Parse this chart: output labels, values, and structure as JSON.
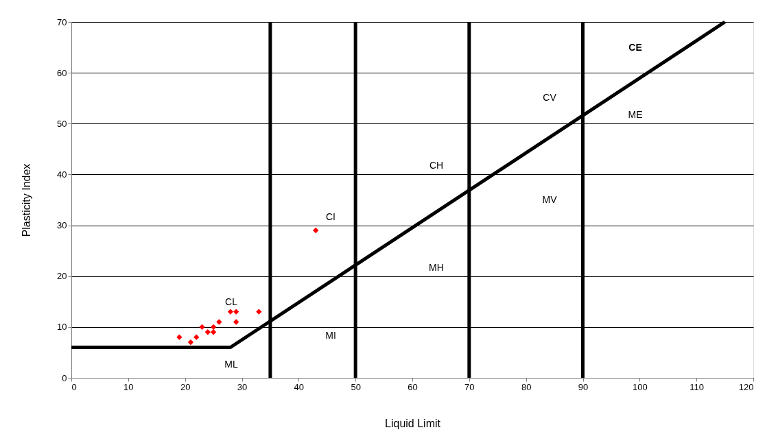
{
  "chart_data": {
    "type": "scatter",
    "xlabel": "Liquid Limit",
    "ylabel": "Plasticity Index",
    "xlim": [
      0,
      120
    ],
    "xticks": [
      0,
      10,
      20,
      30,
      40,
      50,
      60,
      70,
      80,
      90,
      100,
      110,
      120
    ],
    "ylim": [
      0,
      70
    ],
    "yticks": [
      0,
      10,
      20,
      30,
      40,
      50,
      60,
      70
    ],
    "grid": "y",
    "marker": "diamond",
    "x": [
      19,
      21,
      22,
      23,
      24,
      25,
      25,
      26,
      28,
      29,
      29,
      33,
      43
    ],
    "series": [
      {
        "color": "#ff0000",
        "values": [
          8,
          7,
          8,
          10,
          9,
          9,
          10,
          11,
          13,
          13,
          11,
          13,
          29
        ]
      },
      {
        "type": "line",
        "color": "#000000",
        "x": [
          0,
          28,
          115
        ],
        "values": [
          6,
          6,
          70
        ],
        "marker": "none",
        "line_style": "solid"
      }
    ],
    "ref_lines": [
      {
        "axis": "x",
        "value": 35,
        "color": "#000000"
      },
      {
        "axis": "x",
        "value": 50,
        "color": "#000000"
      },
      {
        "axis": "x",
        "value": 70,
        "color": "#000000"
      },
      {
        "axis": "x",
        "value": 90,
        "color": "#000000"
      }
    ],
    "annotations": [
      "CL",
      "CI",
      "CH",
      "CV",
      "CE",
      "ML",
      "MI",
      "MH",
      "MV",
      "ME"
    ]
  }
}
